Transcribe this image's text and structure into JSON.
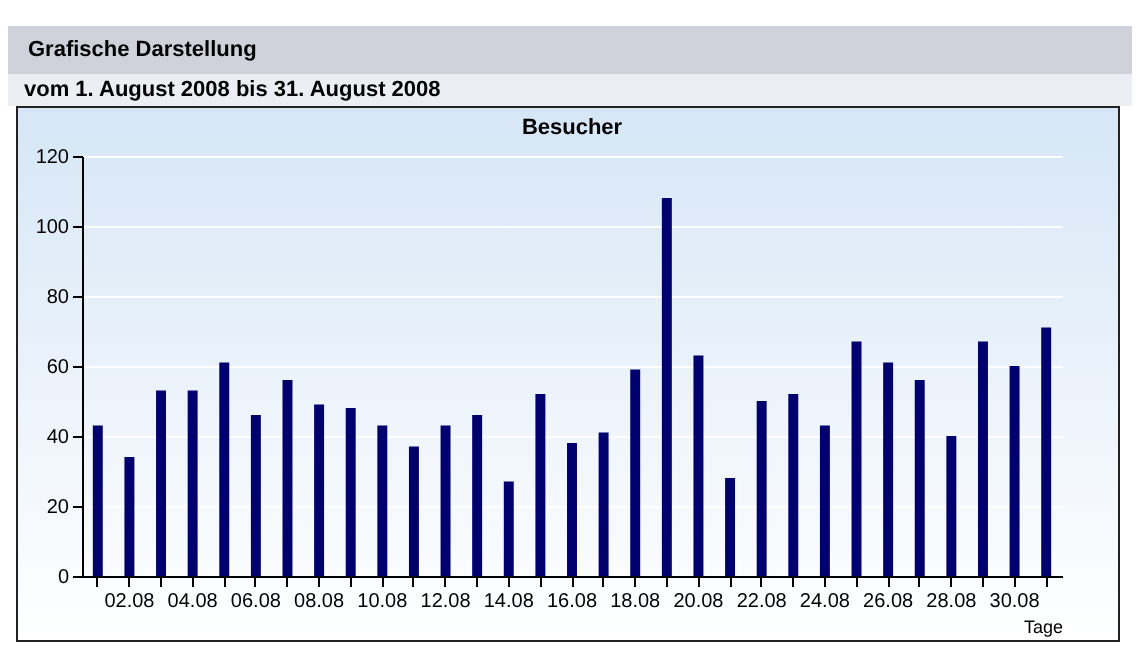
{
  "chart_data": {
    "type": "bar",
    "title": "Besucher",
    "xlabel": "Tage",
    "annotations": [
      "Grafische Darstellung",
      "vom 1. August 2008  bis 31. August 2008"
    ],
    "categories": [
      null,
      "02.08",
      null,
      "04.08",
      null,
      "06.08",
      null,
      "08.08",
      null,
      "10.08",
      null,
      "12.08",
      null,
      "14.08",
      null,
      "16.08",
      null,
      "18.08",
      null,
      "20.08",
      null,
      "22.08",
      null,
      "24.08",
      null,
      "26.08",
      null,
      "28.08",
      null,
      "30.08",
      null
    ],
    "values": [
      43,
      34,
      53,
      53,
      61,
      46,
      56,
      49,
      48,
      43,
      37,
      43,
      46,
      27,
      52,
      38,
      41,
      59,
      108,
      63,
      28,
      50,
      52,
      43,
      67,
      61,
      56,
      40,
      67,
      60,
      71
    ],
    "color": "#00006e",
    "ylim": [
      0,
      120
    ],
    "yticks": [
      0,
      20,
      40,
      60,
      80,
      100,
      120
    ],
    "grid": "y"
  }
}
